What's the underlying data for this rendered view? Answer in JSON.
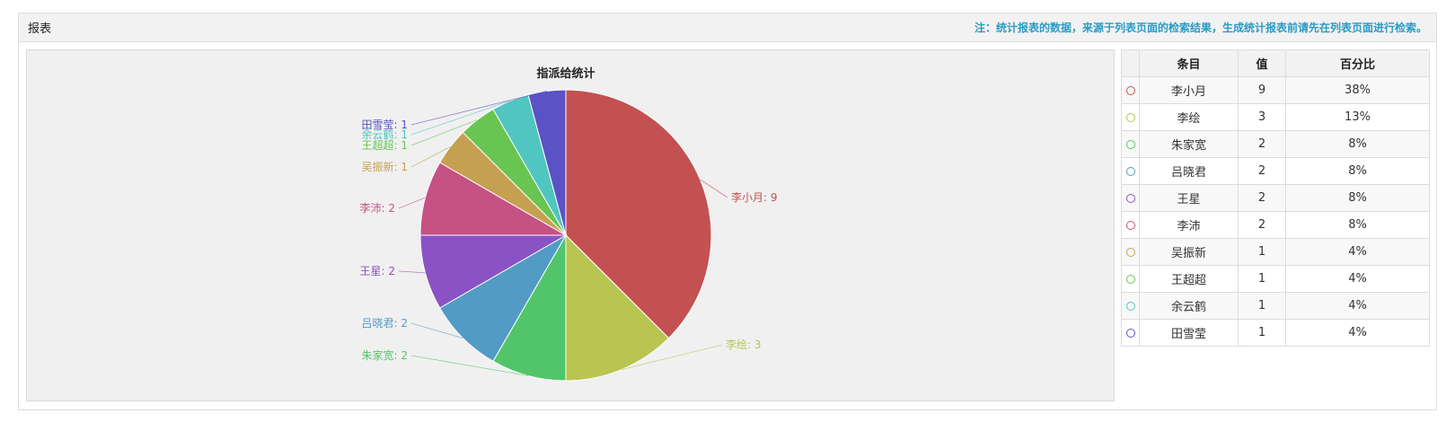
{
  "header": {
    "title": "报表",
    "note": "注：统计报表的数据，来源于列表页面的检索结果，生成统计报表前请先在列表页面进行检索。"
  },
  "table": {
    "headers": [
      "条目",
      "值",
      "百分比"
    ],
    "rows": [
      {
        "name": "李小月",
        "value": "9",
        "percent": "38%",
        "color": "#c45151"
      },
      {
        "name": "李绘",
        "value": "3",
        "percent": "13%",
        "color": "#b9c551"
      },
      {
        "name": "朱家宽",
        "value": "2",
        "percent": "8%",
        "color": "#52c56a"
      },
      {
        "name": "吕晓君",
        "value": "2",
        "percent": "8%",
        "color": "#519bc5"
      },
      {
        "name": "王星",
        "value": "2",
        "percent": "8%",
        "color": "#8b52c5"
      },
      {
        "name": "李沛",
        "value": "2",
        "percent": "8%",
        "color": "#c55185"
      },
      {
        "name": "吴振新",
        "value": "1",
        "percent": "4%",
        "color": "#c5a051"
      },
      {
        "name": "王超超",
        "value": "1",
        "percent": "4%",
        "color": "#68c551"
      },
      {
        "name": "余云鹤",
        "value": "1",
        "percent": "4%",
        "color": "#51c5c0"
      },
      {
        "name": "田雪莹",
        "value": "1",
        "percent": "4%",
        "color": "#5b52c5"
      }
    ]
  },
  "chart_data": {
    "type": "pie",
    "title": "指派给统计",
    "categories": [
      "李小月",
      "李绘",
      "朱家宽",
      "吕晓君",
      "王星",
      "李沛",
      "吴振新",
      "王超超",
      "余云鹤",
      "田雪莹"
    ],
    "values": [
      9,
      3,
      2,
      2,
      2,
      2,
      1,
      1,
      1,
      1
    ],
    "colors": [
      "#c45151",
      "#b9c551",
      "#52c56a",
      "#519bc5",
      "#8b52c5",
      "#c55185",
      "#c5a051",
      "#68c551",
      "#51c5c0",
      "#5b52c5"
    ],
    "labels": [
      "李小月: 9",
      "李绘: 3",
      "朱家宽: 2",
      "吕晓君: 2",
      "王星: 2",
      "李沛: 2",
      "吴振新: 1",
      "王超超: 1",
      "余云鹤: 1",
      "田雪莹: 1"
    ]
  }
}
